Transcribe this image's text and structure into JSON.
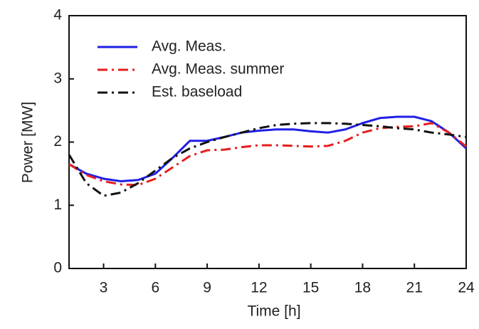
{
  "chart_data": {
    "type": "line",
    "x_label": "Time [h]",
    "y_label": "Power [MW]",
    "x": [
      1,
      2,
      3,
      4,
      5,
      6,
      7,
      8,
      9,
      10,
      11,
      12,
      13,
      14,
      15,
      16,
      17,
      18,
      19,
      20,
      21,
      22,
      23,
      24
    ],
    "series": [
      {
        "name": "Avg. Meas.",
        "color": "#1f1fe6",
        "style": "solid",
        "values": [
          1.65,
          1.5,
          1.42,
          1.38,
          1.4,
          1.5,
          1.75,
          2.02,
          2.02,
          2.08,
          2.15,
          2.18,
          2.2,
          2.2,
          2.17,
          2.15,
          2.2,
          2.3,
          2.38,
          2.4,
          2.4,
          2.33,
          2.15,
          1.9
        ]
      },
      {
        "name": "Avg. Meas. summer",
        "color": "#e61e1e",
        "style": "dashdot",
        "values": [
          1.65,
          1.48,
          1.38,
          1.33,
          1.32,
          1.42,
          1.6,
          1.78,
          1.87,
          1.88,
          1.92,
          1.95,
          1.95,
          1.94,
          1.93,
          1.94,
          2.02,
          2.15,
          2.22,
          2.24,
          2.25,
          2.3,
          2.15,
          1.93
        ]
      },
      {
        "name": "Est. baseload",
        "color": "#111111",
        "style": "dashdot",
        "values": [
          1.8,
          1.35,
          1.15,
          1.2,
          1.35,
          1.55,
          1.75,
          1.9,
          2.0,
          2.08,
          2.15,
          2.22,
          2.27,
          2.29,
          2.3,
          2.3,
          2.29,
          2.27,
          2.25,
          2.22,
          2.2,
          2.15,
          2.12,
          2.08
        ]
      }
    ],
    "xlim": [
      1,
      24
    ],
    "xticks": [
      3,
      6,
      9,
      12,
      15,
      18,
      21,
      24
    ],
    "ylim": [
      0,
      4
    ],
    "yticks": [
      0,
      1,
      2,
      3,
      4
    ],
    "grid": false,
    "legend": "upper left"
  }
}
